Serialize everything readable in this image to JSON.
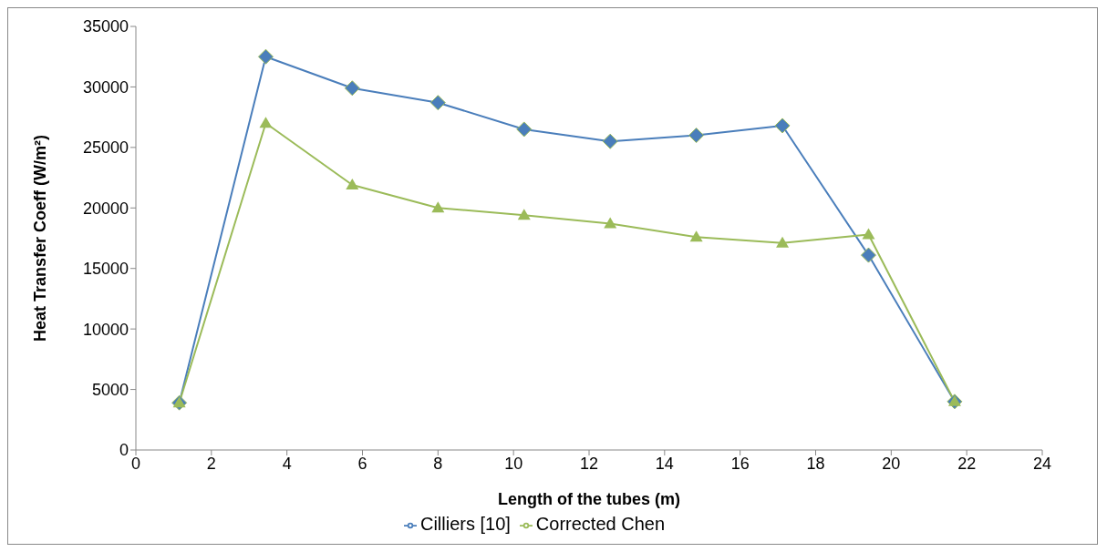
{
  "chart_data": {
    "type": "line",
    "xlabel": "Length of the tubes (m)",
    "ylabel": "Heat Transfer Coeff (W/m²)",
    "x": [
      1.15,
      3.44,
      5.73,
      8.0,
      10.28,
      12.56,
      14.84,
      17.12,
      19.4,
      21.68
    ],
    "xlim": [
      0,
      24
    ],
    "xticks": [
      0,
      2,
      4,
      6,
      8,
      10,
      12,
      14,
      16,
      18,
      20,
      22,
      24
    ],
    "ylim": [
      0,
      35000
    ],
    "yticks": [
      0,
      5000,
      10000,
      15000,
      20000,
      25000,
      30000,
      35000
    ],
    "grid": false,
    "legend": "bottom",
    "line_style": "solid",
    "series": [
      {
        "name": "Cilliers [10]",
        "color": "#4a7ebb",
        "marker": "diamond",
        "values": [
          3900,
          32500,
          29900,
          28700,
          26500,
          25500,
          26000,
          26800,
          16100,
          4000
        ]
      },
      {
        "name": "Corrected Chen",
        "color": "#9bbb59",
        "marker": "triangle",
        "values": [
          3900,
          27000,
          21900,
          20000,
          19400,
          18700,
          17600,
          17100,
          17800,
          4000
        ]
      }
    ]
  }
}
